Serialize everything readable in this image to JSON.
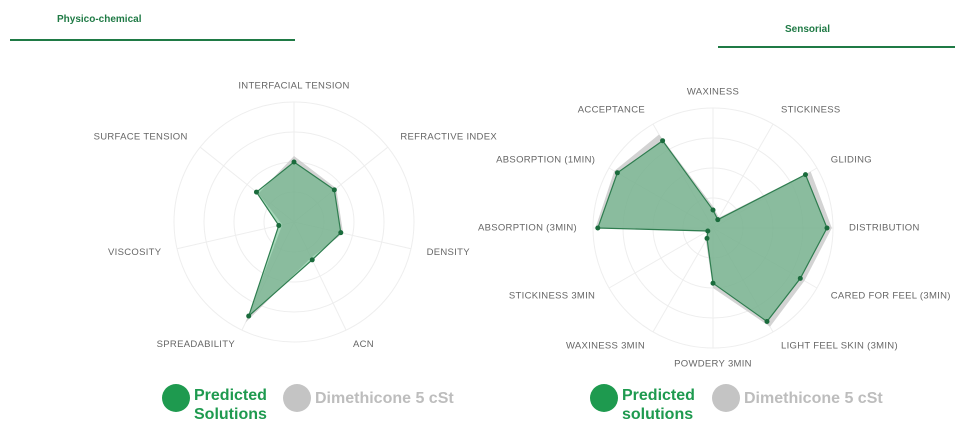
{
  "tabs": [
    "Physico-chemical",
    "Sensorial"
  ],
  "chart_data": [
    {
      "type": "radar",
      "ylim": [
        0,
        100
      ],
      "categories": [
        "INTERFACIAL TENSION",
        "REFRACTIVE INDEX",
        "DENSITY",
        "ACN",
        "SPREADABILITY",
        "VISCOSITY",
        "SURFACE TENSION"
      ],
      "series": [
        {
          "name": "Predicted Solutions",
          "color": "#1e9a4f",
          "values": [
            50,
            43,
            40,
            35,
            87,
            13,
            40
          ]
        },
        {
          "name": "Dimethicone 5 cSt",
          "color": "#c4c4c4",
          "values": [
            55,
            45,
            42,
            33,
            93,
            10,
            38
          ]
        }
      ]
    },
    {
      "type": "radar",
      "ylim": [
        0,
        100
      ],
      "categories": [
        "WAXINESS",
        "STICKINESS",
        "GLIDING",
        "DISTRIBUTION",
        "CARED FOR FEEL (3MIN)",
        "LIGHT FEEL SKIN (3MIN)",
        "POWDERY 3MIN",
        "WAXINESS 3MIN",
        "STICKINESS 3MIN",
        "ABSORPTION (3MIN)",
        "ABSORPTION (1MIN)",
        "ACCEPTANCE"
      ],
      "series": [
        {
          "name": "Predicted solutions",
          "color": "#1e9a4f",
          "values": [
            15,
            8,
            89,
            95,
            84,
            90,
            46,
            10,
            5,
            96,
            92,
            84
          ]
        },
        {
          "name": "Dimethicone 5 cSt",
          "color": "#c4c4c4",
          "values": [
            18,
            10,
            94,
            99,
            88,
            95,
            50,
            12,
            6,
            98,
            95,
            90
          ]
        }
      ]
    }
  ]
}
